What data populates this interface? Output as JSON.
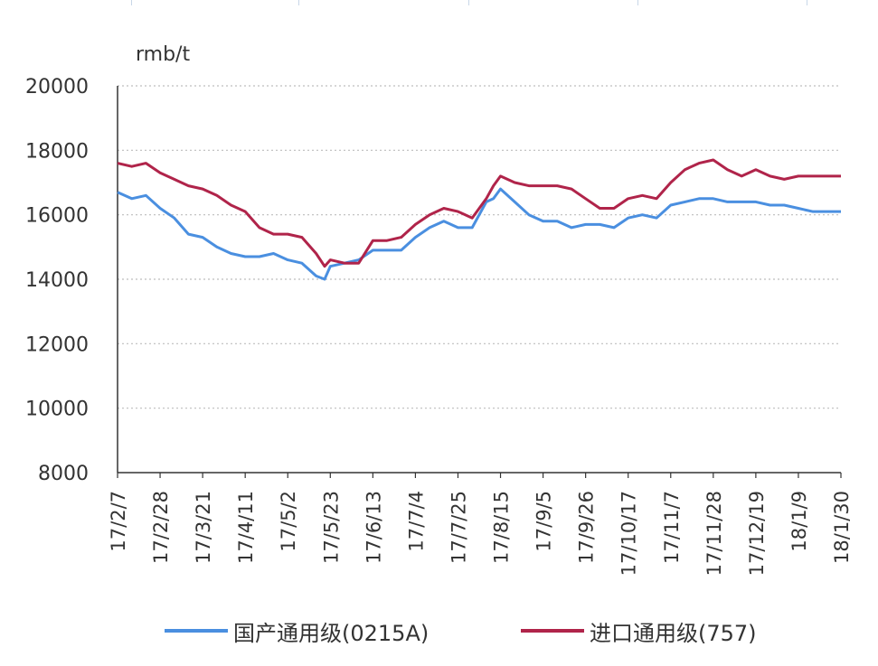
{
  "chart_data": {
    "type": "line",
    "unit_label": "rmb/t",
    "ylim": [
      8000,
      20000
    ],
    "y_ticks": [
      "20000",
      "18000",
      "16000",
      "14000",
      "12000",
      "10000",
      "8000"
    ],
    "x_ticks": [
      "17/2/7",
      "17/2/28",
      "17/3/21",
      "17/4/11",
      "17/5/2",
      "17/5/23",
      "17/6/13",
      "17/7/4",
      "17/7/25",
      "17/8/15",
      "17/9/5",
      "17/9/26",
      "17/10/17",
      "17/11/7",
      "17/11/28",
      "17/12/19",
      "18/1/9",
      "18/1/30"
    ],
    "grid": "horizontal dotted",
    "legend_position": "bottom",
    "series": [
      {
        "name": "国产通用级(0215A)",
        "color": "#4a8fe0",
        "values": [
          [
            0,
            16700
          ],
          [
            1,
            16500
          ],
          [
            2,
            16600
          ],
          [
            3,
            16200
          ],
          [
            4,
            15900
          ],
          [
            5,
            15400
          ],
          [
            6,
            15300
          ],
          [
            7,
            15000
          ],
          [
            8,
            14800
          ],
          [
            9,
            14700
          ],
          [
            10,
            14700
          ],
          [
            11,
            14800
          ],
          [
            12,
            14600
          ],
          [
            13,
            14500
          ],
          [
            14,
            14100
          ],
          [
            14.6,
            14000
          ],
          [
            15,
            14400
          ],
          [
            16,
            14500
          ],
          [
            17,
            14600
          ],
          [
            18,
            14900
          ],
          [
            19,
            14900
          ],
          [
            20,
            14900
          ],
          [
            21,
            15300
          ],
          [
            22,
            15600
          ],
          [
            23,
            15800
          ],
          [
            24,
            15600
          ],
          [
            25,
            15600
          ],
          [
            26,
            16400
          ],
          [
            26.5,
            16500
          ],
          [
            27,
            16800
          ],
          [
            28,
            16400
          ],
          [
            29,
            16000
          ],
          [
            30,
            15800
          ],
          [
            31,
            15800
          ],
          [
            32,
            15600
          ],
          [
            33,
            15700
          ],
          [
            34,
            15700
          ],
          [
            35,
            15600
          ],
          [
            36,
            15900
          ],
          [
            37,
            16000
          ],
          [
            38,
            15900
          ],
          [
            39,
            16300
          ],
          [
            40,
            16400
          ],
          [
            41,
            16500
          ],
          [
            42,
            16500
          ],
          [
            43,
            16400
          ],
          [
            44,
            16400
          ],
          [
            45,
            16400
          ],
          [
            46,
            16300
          ],
          [
            47,
            16300
          ],
          [
            48,
            16200
          ],
          [
            49,
            16100
          ],
          [
            50,
            16100
          ],
          [
            51,
            16100
          ]
        ]
      },
      {
        "name": "进口通用级(757)",
        "color": "#b0244a",
        "values": [
          [
            0,
            17600
          ],
          [
            1,
            17500
          ],
          [
            2,
            17600
          ],
          [
            3,
            17300
          ],
          [
            4,
            17100
          ],
          [
            5,
            16900
          ],
          [
            6,
            16800
          ],
          [
            7,
            16600
          ],
          [
            8,
            16300
          ],
          [
            9,
            16100
          ],
          [
            10,
            15600
          ],
          [
            11,
            15400
          ],
          [
            12,
            15400
          ],
          [
            13,
            15300
          ],
          [
            14,
            14800
          ],
          [
            14.6,
            14400
          ],
          [
            15,
            14600
          ],
          [
            16,
            14500
          ],
          [
            17,
            14500
          ],
          [
            18,
            15200
          ],
          [
            19,
            15200
          ],
          [
            20,
            15300
          ],
          [
            21,
            15700
          ],
          [
            22,
            16000
          ],
          [
            23,
            16200
          ],
          [
            24,
            16100
          ],
          [
            25,
            15900
          ],
          [
            26,
            16500
          ],
          [
            26.5,
            16900
          ],
          [
            27,
            17200
          ],
          [
            28,
            17000
          ],
          [
            29,
            16900
          ],
          [
            30,
            16900
          ],
          [
            31,
            16900
          ],
          [
            32,
            16800
          ],
          [
            33,
            16500
          ],
          [
            34,
            16200
          ],
          [
            35,
            16200
          ],
          [
            36,
            16500
          ],
          [
            37,
            16600
          ],
          [
            38,
            16500
          ],
          [
            39,
            17000
          ],
          [
            40,
            17400
          ],
          [
            41,
            17600
          ],
          [
            42,
            17700
          ],
          [
            43,
            17400
          ],
          [
            44,
            17200
          ],
          [
            45,
            17400
          ],
          [
            46,
            17200
          ],
          [
            47,
            17100
          ],
          [
            48,
            17200
          ],
          [
            49,
            17200
          ],
          [
            50,
            17200
          ],
          [
            51,
            17200
          ]
        ]
      }
    ]
  }
}
